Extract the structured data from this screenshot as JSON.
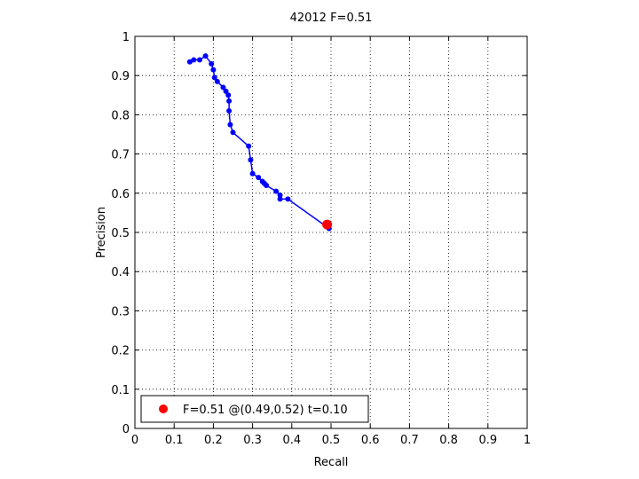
{
  "chart_data": {
    "type": "line",
    "title": "42012 F=0.51",
    "xlabel": "Recall",
    "ylabel": "Precision",
    "xlim": [
      0,
      1
    ],
    "ylim": [
      0,
      1
    ],
    "grid": true,
    "grid_style": "dotted",
    "x_ticks": [
      "0",
      "0.1",
      "0.2",
      "0.3",
      "0.4",
      "0.5",
      "0.6",
      "0.7",
      "0.8",
      "0.9",
      "1"
    ],
    "y_ticks": [
      "0",
      "0.1",
      "0.2",
      "0.3",
      "0.4",
      "0.5",
      "0.6",
      "0.7",
      "0.8",
      "0.9",
      "1"
    ],
    "legend_position": "bottom-left",
    "series": [
      {
        "name": "",
        "color": "#0000ff",
        "marker": "dot",
        "points": [
          [
            0.14,
            0.935
          ],
          [
            0.15,
            0.94
          ],
          [
            0.165,
            0.94
          ],
          [
            0.18,
            0.95
          ],
          [
            0.195,
            0.93
          ],
          [
            0.2,
            0.915
          ],
          [
            0.203,
            0.895
          ],
          [
            0.21,
            0.885
          ],
          [
            0.225,
            0.87
          ],
          [
            0.232,
            0.86
          ],
          [
            0.238,
            0.85
          ],
          [
            0.24,
            0.835
          ],
          [
            0.24,
            0.81
          ],
          [
            0.243,
            0.775
          ],
          [
            0.25,
            0.755
          ],
          [
            0.29,
            0.72
          ],
          [
            0.295,
            0.685
          ],
          [
            0.3,
            0.65
          ],
          [
            0.315,
            0.64
          ],
          [
            0.325,
            0.63
          ],
          [
            0.33,
            0.625
          ],
          [
            0.335,
            0.62
          ],
          [
            0.36,
            0.605
          ],
          [
            0.37,
            0.595
          ],
          [
            0.37,
            0.585
          ],
          [
            0.39,
            0.585
          ],
          [
            0.495,
            0.51
          ]
        ]
      },
      {
        "name": "F=0.51 @(0.49,0.52) t=0.10",
        "color": "#ff0000",
        "marker": "big-dot",
        "points": [
          [
            0.49,
            0.52
          ]
        ]
      }
    ]
  }
}
